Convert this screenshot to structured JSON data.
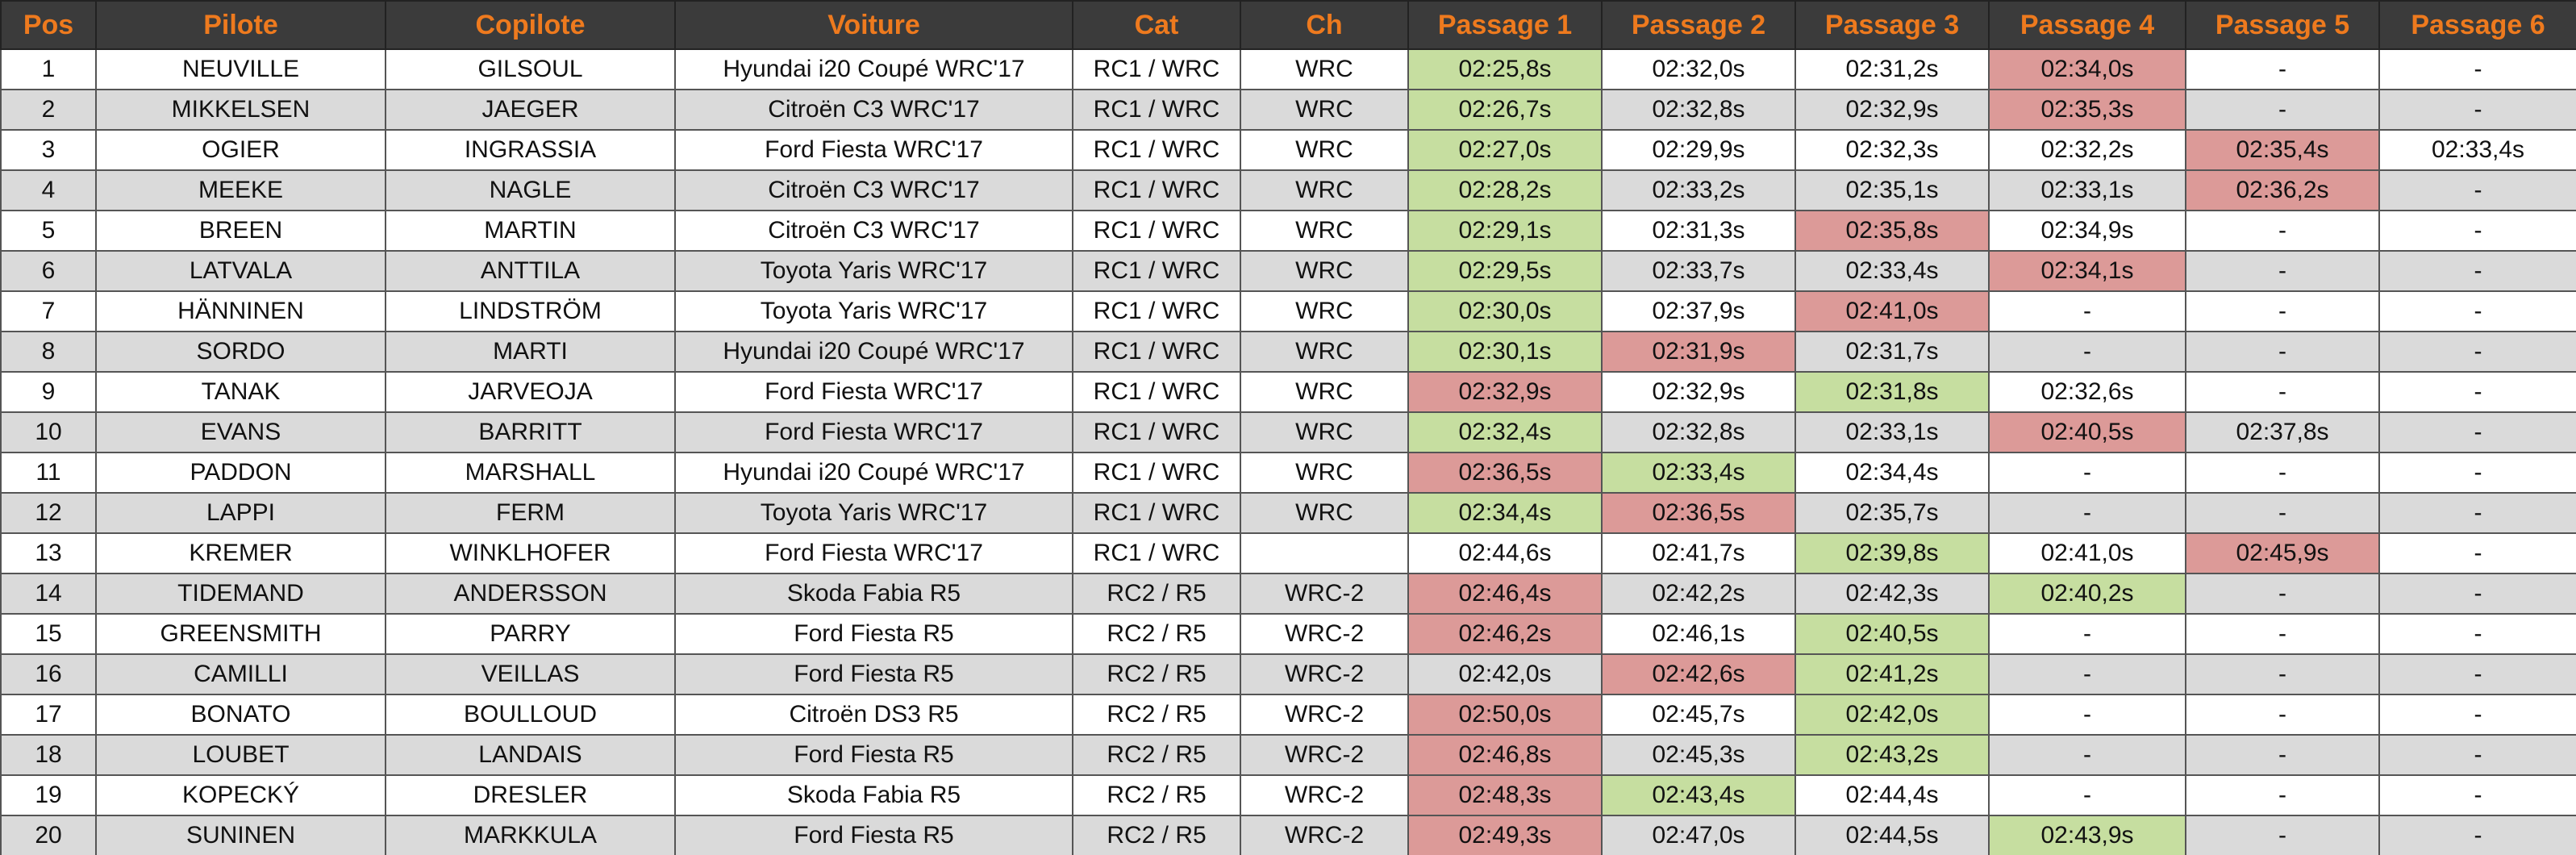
{
  "table": {
    "columns": [
      "Pos",
      "Pilote",
      "Copilote",
      "Voiture",
      "Cat",
      "Ch",
      "Passage 1",
      "Passage 2",
      "Passage 3",
      "Passage 4",
      "Passage 5",
      "Passage 6"
    ],
    "rows": [
      {
        "cells": [
          "1",
          "NEUVILLE",
          "GILSOUL",
          "Hyundai i20 Coupé WRC'17",
          "RC1 / WRC",
          "WRC",
          "02:25,8s",
          "02:32,0s",
          "02:31,2s",
          "02:34,0s",
          "-",
          "-"
        ],
        "passage_fill": [
          "#c6dea0",
          null,
          null,
          "#dc9a98",
          null,
          null
        ]
      },
      {
        "cells": [
          "2",
          "MIKKELSEN",
          "JAEGER",
          "Citroën C3 WRC'17",
          "RC1 / WRC",
          "WRC",
          "02:26,7s",
          "02:32,8s",
          "02:32,9s",
          "02:35,3s",
          "-",
          "-"
        ],
        "passage_fill": [
          "#c6dea0",
          null,
          null,
          "#dc9a98",
          null,
          null
        ]
      },
      {
        "cells": [
          "3",
          "OGIER",
          "INGRASSIA",
          "Ford Fiesta WRC'17",
          "RC1 / WRC",
          "WRC",
          "02:27,0s",
          "02:29,9s",
          "02:32,3s",
          "02:32,2s",
          "02:35,4s",
          "02:33,4s"
        ],
        "passage_fill": [
          "#c6dea0",
          null,
          null,
          null,
          "#dc9a98",
          null
        ]
      },
      {
        "cells": [
          "4",
          "MEEKE",
          "NAGLE",
          "Citroën C3 WRC'17",
          "RC1 / WRC",
          "WRC",
          "02:28,2s",
          "02:33,2s",
          "02:35,1s",
          "02:33,1s",
          "02:36,2s",
          "-"
        ],
        "passage_fill": [
          "#c6dea0",
          null,
          null,
          null,
          "#dc9a98",
          null
        ]
      },
      {
        "cells": [
          "5",
          "BREEN",
          "MARTIN",
          "Citroën C3 WRC'17",
          "RC1 / WRC",
          "WRC",
          "02:29,1s",
          "02:31,3s",
          "02:35,8s",
          "02:34,9s",
          "-",
          "-"
        ],
        "passage_fill": [
          "#c6dea0",
          null,
          "#dc9a98",
          null,
          null,
          null
        ]
      },
      {
        "cells": [
          "6",
          "LATVALA",
          "ANTTILA",
          "Toyota Yaris WRC'17",
          "RC1 / WRC",
          "WRC",
          "02:29,5s",
          "02:33,7s",
          "02:33,4s",
          "02:34,1s",
          "-",
          "-"
        ],
        "passage_fill": [
          "#c6dea0",
          null,
          null,
          "#dc9a98",
          null,
          null
        ]
      },
      {
        "cells": [
          "7",
          "HÄNNINEN",
          "LINDSTRÖM",
          "Toyota Yaris WRC'17",
          "RC1 / WRC",
          "WRC",
          "02:30,0s",
          "02:37,9s",
          "02:41,0s",
          "-",
          "-",
          "-"
        ],
        "passage_fill": [
          "#c6dea0",
          null,
          "#dc9a98",
          null,
          null,
          null
        ]
      },
      {
        "cells": [
          "8",
          "SORDO",
          "MARTI",
          "Hyundai i20 Coupé WRC'17",
          "RC1 / WRC",
          "WRC",
          "02:30,1s",
          "02:31,9s",
          "02:31,7s",
          "-",
          "-",
          "-"
        ],
        "passage_fill": [
          "#c6dea0",
          "#dc9a98",
          null,
          null,
          null,
          null
        ]
      },
      {
        "cells": [
          "9",
          "TANAK",
          "JARVEOJA",
          "Ford Fiesta WRC'17",
          "RC1 / WRC",
          "WRC",
          "02:32,9s",
          "02:32,9s",
          "02:31,8s",
          "02:32,6s",
          "-",
          "-"
        ],
        "passage_fill": [
          "#dc9a98",
          null,
          "#c6dea0",
          null,
          null,
          null
        ]
      },
      {
        "cells": [
          "10",
          "EVANS",
          "BARRITT",
          "Ford Fiesta WRC'17",
          "RC1 / WRC",
          "WRC",
          "02:32,4s",
          "02:32,8s",
          "02:33,1s",
          "02:40,5s",
          "02:37,8s",
          "-"
        ],
        "passage_fill": [
          "#c6dea0",
          null,
          null,
          "#dc9a98",
          null,
          null
        ]
      },
      {
        "cells": [
          "11",
          "PADDON",
          "MARSHALL",
          "Hyundai i20 Coupé WRC'17",
          "RC1 / WRC",
          "WRC",
          "02:36,5s",
          "02:33,4s",
          "02:34,4s",
          "-",
          "-",
          "-"
        ],
        "passage_fill": [
          "#dc9a98",
          "#c6dea0",
          null,
          null,
          null,
          null
        ]
      },
      {
        "cells": [
          "12",
          "LAPPI",
          "FERM",
          "Toyota Yaris WRC'17",
          "RC1 / WRC",
          "WRC",
          "02:34,4s",
          "02:36,5s",
          "02:35,7s",
          "-",
          "-",
          "-"
        ],
        "passage_fill": [
          "#c6dea0",
          "#dc9a98",
          null,
          null,
          null,
          null
        ]
      },
      {
        "cells": [
          "13",
          "KREMER",
          "WINKLHOFER",
          "Ford Fiesta WRC'17",
          "RC1 / WRC",
          null,
          "02:44,6s",
          "02:41,7s",
          "02:39,8s",
          "02:41,0s",
          "02:45,9s",
          "-"
        ],
        "passage_fill": [
          null,
          null,
          "#c6dea0",
          null,
          "#dc9a98",
          null
        ]
      },
      {
        "cells": [
          "14",
          "TIDEMAND",
          "ANDERSSON",
          "Skoda Fabia R5",
          "RC2 / R5",
          "WRC-2",
          "02:46,4s",
          "02:42,2s",
          "02:42,3s",
          "02:40,2s",
          "-",
          "-"
        ],
        "passage_fill": [
          "#dc9a98",
          null,
          null,
          "#c6dea0",
          null,
          null
        ]
      },
      {
        "cells": [
          "15",
          "GREENSMITH",
          "PARRY",
          "Ford Fiesta R5",
          "RC2 / R5",
          "WRC-2",
          "02:46,2s",
          "02:46,1s",
          "02:40,5s",
          "-",
          "-",
          "-"
        ],
        "passage_fill": [
          "#dc9a98",
          null,
          "#c6dea0",
          null,
          null,
          null
        ]
      },
      {
        "cells": [
          "16",
          "CAMILLI",
          "VEILLAS",
          "Ford Fiesta R5",
          "RC2 / R5",
          "WRC-2",
          "02:42,0s",
          "02:42,6s",
          "02:41,2s",
          "-",
          "-",
          "-"
        ],
        "passage_fill": [
          null,
          "#dc9a98",
          "#c6dea0",
          null,
          null,
          null
        ]
      },
      {
        "cells": [
          "17",
          "BONATO",
          "BOULLOUD",
          "Citroën DS3 R5",
          "RC2 / R5",
          "WRC-2",
          "02:50,0s",
          "02:45,7s",
          "02:42,0s",
          "-",
          "-",
          "-"
        ],
        "passage_fill": [
          "#dc9a98",
          null,
          "#c6dea0",
          null,
          null,
          null
        ]
      },
      {
        "cells": [
          "18",
          "LOUBET",
          "LANDAIS",
          "Ford Fiesta R5",
          "RC2 / R5",
          "WRC-2",
          "02:46,8s",
          "02:45,3s",
          "02:43,2s",
          "-",
          "-",
          "-"
        ],
        "passage_fill": [
          "#dc9a98",
          null,
          "#c6dea0",
          null,
          null,
          null
        ]
      },
      {
        "cells": [
          "19",
          "KOPECKÝ",
          "DRESLER",
          "Skoda Fabia R5",
          "RC2 / R5",
          "WRC-2",
          "02:48,3s",
          "02:43,4s",
          "02:44,4s",
          "-",
          "-",
          "-"
        ],
        "passage_fill": [
          "#dc9a98",
          "#c6dea0",
          null,
          null,
          null,
          null
        ]
      },
      {
        "cells": [
          "20",
          "SUNINEN",
          "MARKKULA",
          "Ford Fiesta R5",
          "RC2 / R5",
          "WRC-2",
          "02:49,3s",
          "02:47,0s",
          "02:44,5s",
          "02:43,9s",
          "-",
          "-"
        ],
        "passage_fill": [
          "#dc9a98",
          null,
          null,
          "#c6dea0",
          null,
          null
        ]
      }
    ]
  }
}
